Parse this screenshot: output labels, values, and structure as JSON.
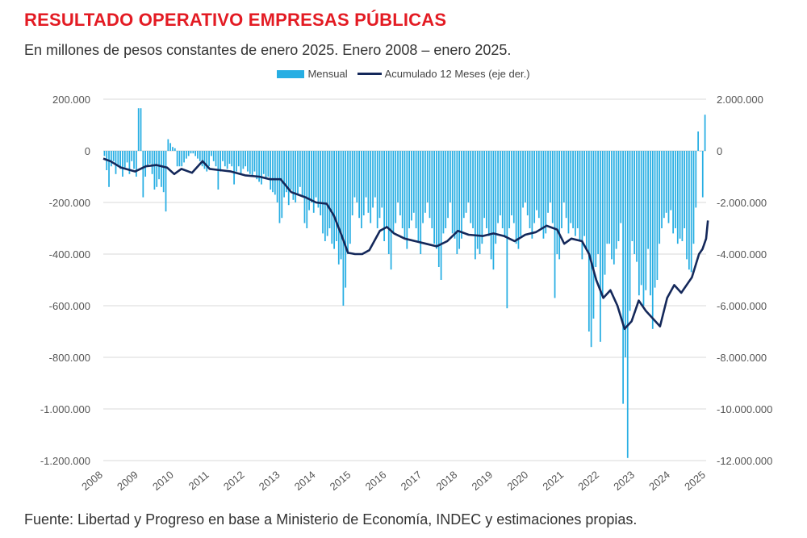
{
  "title": "RESULTADO OPERATIVO EMPRESAS PÚBLICAS",
  "subtitle": "En millones de pesos constantes de enero 2025. Enero 2008 – enero 2025.",
  "footer": "Fuente: Libertad y Progreso en base a Ministerio de Economía, INDEC y estimaciones propias.",
  "colors": {
    "title": "#e31b23",
    "bars": "#27aee3",
    "line": "#14285a",
    "grid": "#d9d9d9"
  },
  "chart_data": {
    "type": "bar",
    "legend_placement": "top-center",
    "grid": true,
    "series": [
      {
        "name": "Mensual",
        "type": "bar",
        "axis": "left",
        "values": [
          -20,
          -75,
          -140,
          -60,
          -40,
          -90,
          -55,
          -70,
          -100,
          -65,
          -45,
          -90,
          -40,
          -70,
          -100,
          165,
          165,
          -180,
          -100,
          -60,
          -50,
          -90,
          -150,
          -140,
          -110,
          -140,
          -160,
          -235,
          45,
          30,
          15,
          10,
          -60,
          -60,
          -60,
          -45,
          -30,
          -20,
          -10,
          -10,
          -20,
          -30,
          -40,
          -60,
          -70,
          -80,
          -60,
          -20,
          -40,
          -60,
          -150,
          -80,
          -40,
          -60,
          -70,
          -50,
          -60,
          -130,
          -80,
          -60,
          -90,
          -70,
          -60,
          -80,
          -90,
          -100,
          -80,
          -110,
          -120,
          -130,
          -90,
          -110,
          -100,
          -150,
          -160,
          -170,
          -200,
          -280,
          -260,
          -180,
          -160,
          -210,
          -150,
          -190,
          -200,
          -170,
          -140,
          -180,
          -280,
          -300,
          -230,
          -200,
          -240,
          -180,
          -220,
          -250,
          -320,
          -350,
          -330,
          -300,
          -360,
          -380,
          -350,
          -440,
          -420,
          -600,
          -530,
          -400,
          -360,
          -250,
          -180,
          -200,
          -260,
          -300,
          -250,
          -180,
          -240,
          -280,
          -220,
          -180,
          -300,
          -260,
          -220,
          -350,
          -300,
          -400,
          -460,
          -320,
          -280,
          -200,
          -250,
          -300,
          -340,
          -380,
          -300,
          -270,
          -240,
          -300,
          -350,
          -400,
          -280,
          -240,
          -200,
          -260,
          -300,
          -360,
          -380,
          -450,
          -500,
          -320,
          -300,
          -260,
          -200,
          -320,
          -340,
          -400,
          -380,
          -340,
          -260,
          -240,
          -200,
          -280,
          -300,
          -420,
          -380,
          -400,
          -360,
          -260,
          -300,
          -330,
          -420,
          -460,
          -360,
          -280,
          -250,
          -300,
          -330,
          -610,
          -300,
          -250,
          -280,
          -360,
          -380,
          -330,
          -220,
          -200,
          -250,
          -300,
          -340,
          -280,
          -230,
          -260,
          -300,
          -340,
          -320,
          -240,
          -200,
          -280,
          -570,
          -400,
          -420,
          -300,
          -200,
          -260,
          -320,
          -280,
          -300,
          -330,
          -300,
          -350,
          -420,
          -330,
          -380,
          -700,
          -760,
          -650,
          -450,
          -400,
          -740,
          -560,
          -480,
          -360,
          -360,
          -420,
          -440,
          -380,
          -350,
          -280,
          -980,
          -800,
          -1190,
          -620,
          -350,
          -400,
          -430,
          -560,
          -520,
          -600,
          -540,
          -380,
          -560,
          -690,
          -530,
          -500,
          -360,
          -300,
          -260,
          -240,
          -280,
          -230,
          -320,
          -300,
          -360,
          -340,
          -350,
          -300,
          -420,
          -460,
          -470,
          -360,
          -220,
          75,
          0,
          -180,
          140
        ]
      },
      {
        "name": "Acumulado 12 Meses (eje der.)",
        "type": "line",
        "axis": "right",
        "points": [
          [
            2008.0,
            -300
          ],
          [
            2008.2,
            -400
          ],
          [
            2008.5,
            -650
          ],
          [
            2008.9,
            -800
          ],
          [
            2009.2,
            -600
          ],
          [
            2009.5,
            -550
          ],
          [
            2009.8,
            -650
          ],
          [
            2010.0,
            -900
          ],
          [
            2010.2,
            -700
          ],
          [
            2010.5,
            -850
          ],
          [
            2010.8,
            -400
          ],
          [
            2011.0,
            -700
          ],
          [
            2011.3,
            -750
          ],
          [
            2011.6,
            -800
          ],
          [
            2012.0,
            -950
          ],
          [
            2012.4,
            -1000
          ],
          [
            2012.7,
            -1100
          ],
          [
            2013.0,
            -1100
          ],
          [
            2013.3,
            -1600
          ],
          [
            2013.7,
            -1800
          ],
          [
            2014.0,
            -2000
          ],
          [
            2014.3,
            -2050
          ],
          [
            2014.5,
            -2500
          ],
          [
            2014.7,
            -3200
          ],
          [
            2014.9,
            -3950
          ],
          [
            2015.1,
            -4000
          ],
          [
            2015.3,
            -4000
          ],
          [
            2015.5,
            -3850
          ],
          [
            2015.8,
            -3100
          ],
          [
            2016.0,
            -2950
          ],
          [
            2016.2,
            -3200
          ],
          [
            2016.5,
            -3400
          ],
          [
            2016.8,
            -3500
          ],
          [
            2017.1,
            -3600
          ],
          [
            2017.4,
            -3700
          ],
          [
            2017.7,
            -3500
          ],
          [
            2018.0,
            -3100
          ],
          [
            2018.3,
            -3250
          ],
          [
            2018.7,
            -3300
          ],
          [
            2019.0,
            -3200
          ],
          [
            2019.3,
            -3300
          ],
          [
            2019.6,
            -3500
          ],
          [
            2019.9,
            -3250
          ],
          [
            2020.2,
            -3150
          ],
          [
            2020.5,
            -2900
          ],
          [
            2020.8,
            -3050
          ],
          [
            2021.0,
            -3600
          ],
          [
            2021.2,
            -3400
          ],
          [
            2021.5,
            -3500
          ],
          [
            2021.7,
            -4000
          ],
          [
            2021.9,
            -5000
          ],
          [
            2022.1,
            -5700
          ],
          [
            2022.3,
            -5400
          ],
          [
            2022.5,
            -6000
          ],
          [
            2022.7,
            -6900
          ],
          [
            2022.9,
            -6600
          ],
          [
            2023.1,
            -5800
          ],
          [
            2023.3,
            -6200
          ],
          [
            2023.5,
            -6500
          ],
          [
            2023.7,
            -6800
          ],
          [
            2023.9,
            -5700
          ],
          [
            2024.1,
            -5200
          ],
          [
            2024.3,
            -5500
          ],
          [
            2024.6,
            -4900
          ],
          [
            2024.8,
            -4000
          ],
          [
            2024.9,
            -3800
          ],
          [
            2025.0,
            -3400
          ],
          [
            2025.05,
            -2700
          ]
        ]
      }
    ],
    "x_range": [
      2008,
      2025
    ],
    "x_ticks": [
      "2008",
      "2009",
      "2010",
      "2011",
      "2012",
      "2013",
      "2014",
      "2015",
      "2016",
      "2017",
      "2018",
      "2019",
      "2020",
      "2021",
      "2022",
      "2023",
      "2024",
      "2025"
    ],
    "y_left": {
      "min": -1200,
      "max": 200,
      "ticks": [
        "200.000",
        "0",
        "-200.000",
        "-400.000",
        "-600.000",
        "-800.000",
        "-1.000.000",
        "-1.200.000"
      ]
    },
    "y_right": {
      "min": -12000,
      "max": 2000,
      "ticks": [
        "2.000.000",
        "0",
        "-2.000.000",
        "-4.000.000",
        "-6.000.000",
        "-8.000.000",
        "-10.000.000",
        "-12.000.000"
      ]
    }
  }
}
